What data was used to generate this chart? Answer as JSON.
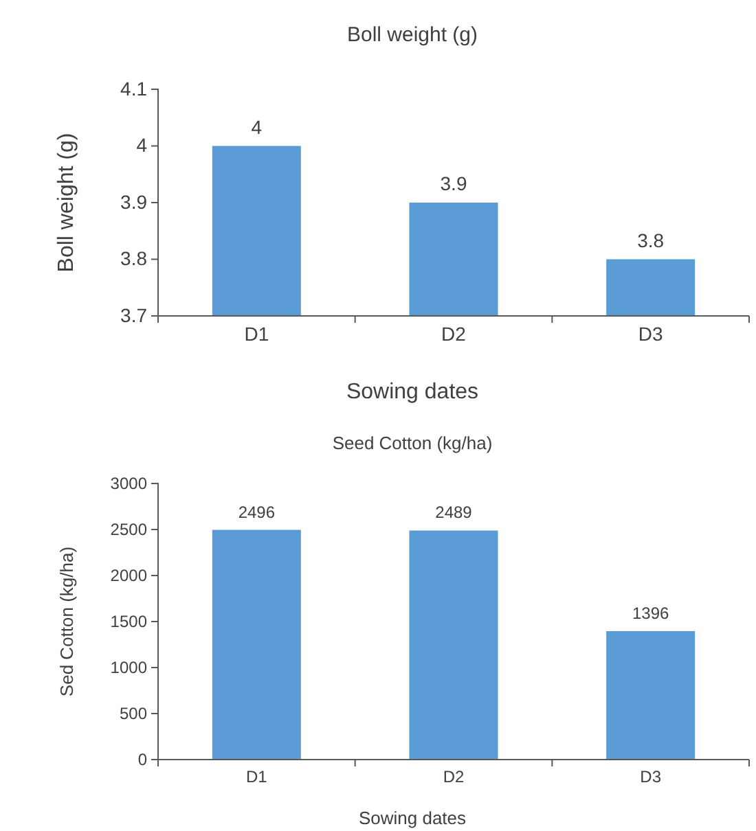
{
  "chart_data": [
    {
      "type": "bar",
      "title": "Boll weight (g)",
      "xlabel": "Sowing dates",
      "ylabel": "Boll weight (g)",
      "categories": [
        "D1",
        "D2",
        "D3"
      ],
      "values": [
        4,
        3.9,
        3.8
      ],
      "color": "#5b9bd5",
      "ylim": [
        3.7,
        4.1
      ],
      "yticks": [
        3.7,
        3.8,
        3.9,
        4,
        4.1
      ],
      "data_labels": true
    },
    {
      "type": "bar",
      "title": "Seed Cotton (kg/ha)",
      "xlabel": "Sowing dates",
      "ylabel": "Sed Cotton (kg/ha)",
      "categories": [
        "D1",
        "D2",
        "D3"
      ],
      "values": [
        2496,
        2489,
        1396
      ],
      "color": "#5b9bd5",
      "ylim": [
        0,
        3000
      ],
      "yticks": [
        0,
        500,
        1000,
        1500,
        2000,
        2500,
        3000
      ],
      "data_labels": true
    }
  ]
}
